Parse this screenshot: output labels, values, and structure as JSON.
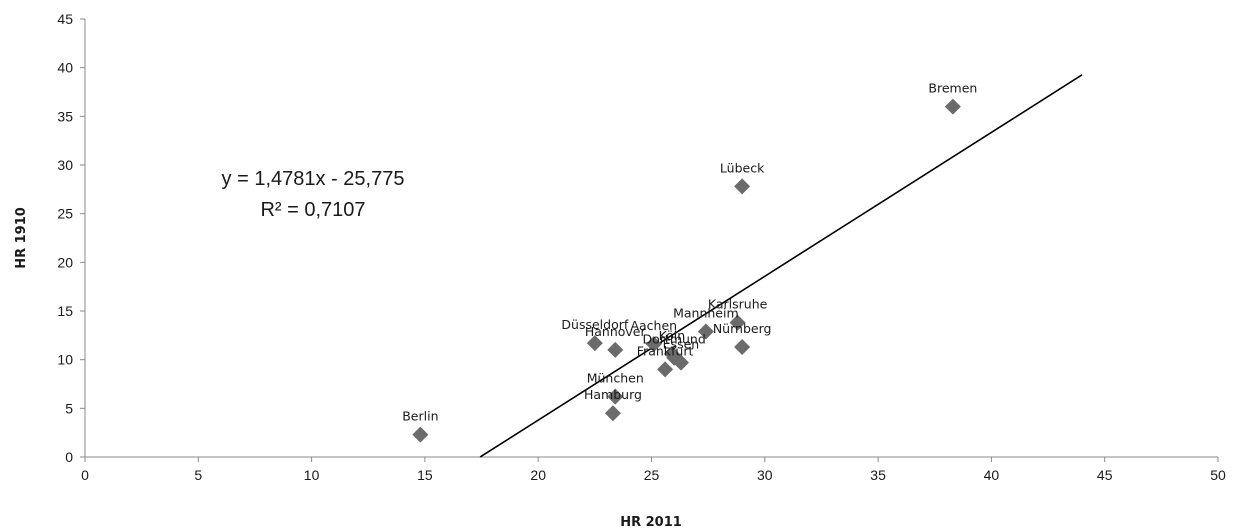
{
  "chart_data": {
    "type": "scatter",
    "title": "",
    "xlabel": "HR 2011",
    "ylabel": "HR 1910",
    "xlim": [
      0,
      50
    ],
    "ylim": [
      0,
      45
    ],
    "x_ticks": [
      0,
      5,
      10,
      15,
      20,
      25,
      30,
      35,
      40,
      45,
      50
    ],
    "y_ticks": [
      0,
      5,
      10,
      15,
      20,
      25,
      30,
      35,
      40,
      45
    ],
    "grid": false,
    "legend": "none",
    "marker": "diamond",
    "marker_color": "#6b6b6b",
    "points": [
      {
        "label": "Berlin",
        "x": 14.8,
        "y": 2.3
      },
      {
        "label": "Hamburg",
        "x": 23.3,
        "y": 4.5
      },
      {
        "label": "München",
        "x": 23.4,
        "y": 6.2
      },
      {
        "label": "Düsseldorf",
        "x": 22.5,
        "y": 11.7
      },
      {
        "label": "Hannover",
        "x": 23.4,
        "y": 11.0
      },
      {
        "label": "Aachen",
        "x": 25.1,
        "y": 11.6
      },
      {
        "label": "Köln",
        "x": 25.9,
        "y": 10.6
      },
      {
        "label": "Dortmund",
        "x": 26.0,
        "y": 10.2
      },
      {
        "label": "Essen",
        "x": 26.3,
        "y": 9.7
      },
      {
        "label": "Frankfurt",
        "x": 25.6,
        "y": 9.0
      },
      {
        "label": "Mannheim",
        "x": 27.4,
        "y": 12.9
      },
      {
        "label": "Karlsruhe",
        "x": 28.8,
        "y": 13.8
      },
      {
        "label": "Nürnberg",
        "x": 29.0,
        "y": 11.3
      },
      {
        "label": "Lübeck",
        "x": 29.0,
        "y": 27.8
      },
      {
        "label": "Bremen",
        "x": 38.3,
        "y": 36.0
      }
    ],
    "trendline": {
      "type": "linear",
      "slope": 1.4781,
      "intercept": -25.775,
      "x_range": [
        17.44,
        44.0
      ],
      "color": "#000000"
    },
    "annotations": {
      "equation": "y = 1,4781x - 25,775",
      "r_squared": "R² = 0,7107"
    }
  }
}
